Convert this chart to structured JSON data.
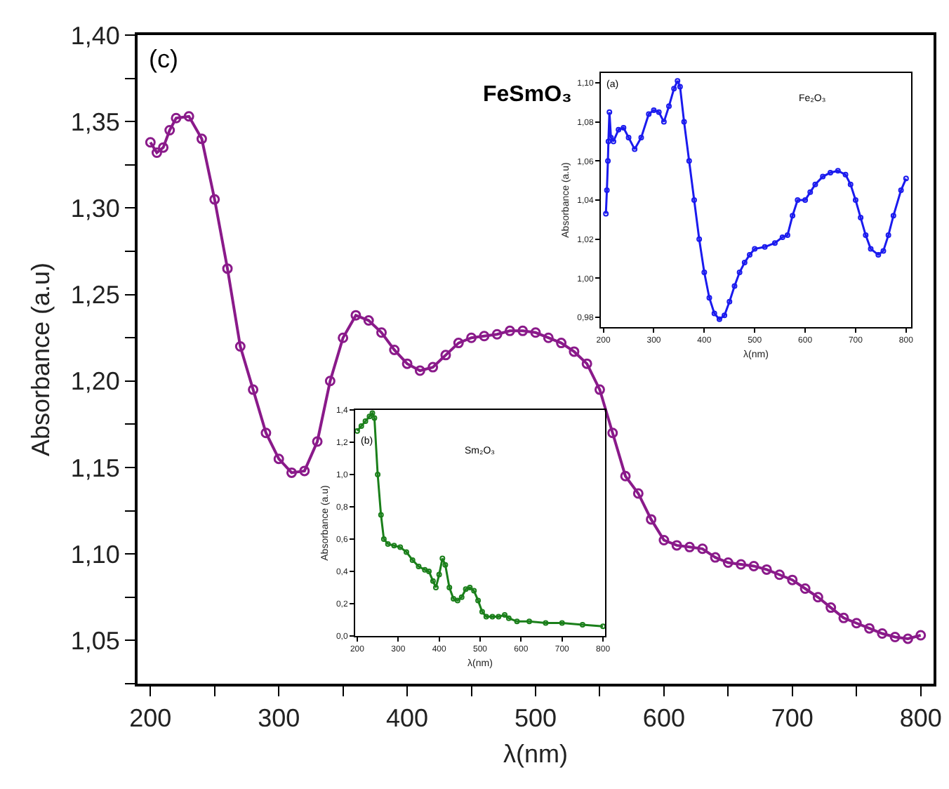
{
  "chart_data": [
    {
      "type": "line",
      "xlabel": "λ(nm)",
      "ylabel": "Absorbance (a.u)",
      "annotations": [
        "(c)",
        "FeSmO₃"
      ],
      "marker": "circle",
      "xlim": [
        190,
        810
      ],
      "ylim": [
        1.025,
        1.4
      ],
      "xticks": [
        200,
        {
          "value": 250,
          "label": null
        },
        300,
        {
          "value": 350,
          "label": null
        },
        400,
        {
          "value": 450,
          "label": null
        },
        500,
        {
          "value": 550,
          "label": null
        },
        600,
        {
          "value": 650,
          "label": null
        },
        700,
        {
          "value": 750,
          "label": null
        },
        800
      ],
      "yticks": [
        {
          "value": 1.025,
          "label": null
        },
        {
          "value": 1.05,
          "label": "1,05"
        },
        {
          "value": 1.075,
          "label": null
        },
        {
          "value": 1.1,
          "label": "1,10"
        },
        {
          "value": 1.125,
          "label": null
        },
        {
          "value": 1.15,
          "label": "1,15"
        },
        {
          "value": 1.175,
          "label": null
        },
        {
          "value": 1.2,
          "label": "1,20"
        },
        {
          "value": 1.225,
          "label": null
        },
        {
          "value": 1.25,
          "label": "1,25"
        },
        {
          "value": 1.275,
          "label": null
        },
        {
          "value": 1.3,
          "label": "1,30"
        },
        {
          "value": 1.325,
          "label": null
        },
        {
          "value": 1.35,
          "label": "1,35"
        },
        {
          "value": 1.375,
          "label": null
        },
        {
          "value": 1.4,
          "label": "1,40"
        }
      ],
      "x": [
        200,
        205,
        210,
        215,
        220,
        230,
        240,
        250,
        260,
        270,
        280,
        290,
        300,
        310,
        320,
        330,
        340,
        350,
        360,
        370,
        380,
        390,
        400,
        410,
        420,
        430,
        440,
        450,
        460,
        470,
        480,
        490,
        500,
        510,
        520,
        530,
        540,
        550,
        560,
        570,
        580,
        590,
        600,
        610,
        620,
        630,
        640,
        650,
        660,
        670,
        680,
        690,
        700,
        710,
        720,
        730,
        740,
        750,
        760,
        770,
        780,
        790,
        800
      ],
      "series": [
        {
          "color": "#8a1a8a",
          "values": [
            1.338,
            1.332,
            1.335,
            1.345,
            1.352,
            1.353,
            1.34,
            1.305,
            1.265,
            1.22,
            1.195,
            1.17,
            1.155,
            1.147,
            1.148,
            1.165,
            1.2,
            1.225,
            1.238,
            1.235,
            1.228,
            1.218,
            1.21,
            1.206,
            1.208,
            1.215,
            1.222,
            1.225,
            1.226,
            1.227,
            1.229,
            1.229,
            1.228,
            1.225,
            1.222,
            1.217,
            1.21,
            1.195,
            1.17,
            1.145,
            1.135,
            1.12,
            1.108,
            1.105,
            1.104,
            1.103,
            1.098,
            1.095,
            1.094,
            1.093,
            1.091,
            1.088,
            1.085,
            1.08,
            1.075,
            1.069,
            1.063,
            1.06,
            1.057,
            1.054,
            1.052,
            1.051,
            1.053
          ]
        }
      ]
    },
    {
      "type": "line",
      "xlabel": "λ(nm)",
      "ylabel": "Absorbance (a.u)",
      "annotations": [
        "(a)",
        "Fe₂O₃"
      ],
      "marker": "circle",
      "xlim": [
        195,
        810
      ],
      "ylim": [
        0.975,
        1.105
      ],
      "xticks": [
        200,
        300,
        400,
        500,
        600,
        700,
        800
      ],
      "yticks": [
        {
          "value": 0.98,
          "label": "0,98"
        },
        {
          "value": 1.0,
          "label": "1,00"
        },
        {
          "value": 1.02,
          "label": "1,02"
        },
        {
          "value": 1.04,
          "label": "1,04"
        },
        {
          "value": 1.06,
          "label": "1,06"
        },
        {
          "value": 1.08,
          "label": "1,08"
        },
        {
          "value": 1.1,
          "label": "1,10"
        }
      ],
      "x": [
        205,
        207,
        209,
        210,
        212,
        215,
        220,
        230,
        240,
        250,
        262,
        275,
        290,
        300,
        310,
        320,
        330,
        340,
        347,
        352,
        360,
        370,
        380,
        390,
        400,
        410,
        420,
        430,
        440,
        450,
        460,
        470,
        480,
        490,
        500,
        520,
        540,
        555,
        565,
        575,
        585,
        600,
        610,
        620,
        635,
        650,
        665,
        680,
        690,
        700,
        710,
        720,
        730,
        745,
        755,
        765,
        775,
        790,
        800
      ],
      "series": [
        {
          "color": "#1a1aee",
          "values": [
            1.033,
            1.045,
            1.06,
            1.07,
            1.085,
            1.072,
            1.07,
            1.076,
            1.077,
            1.072,
            1.066,
            1.072,
            1.084,
            1.086,
            1.085,
            1.08,
            1.088,
            1.097,
            1.101,
            1.098,
            1.08,
            1.06,
            1.04,
            1.02,
            1.003,
            0.99,
            0.982,
            0.979,
            0.981,
            0.988,
            0.996,
            1.003,
            1.008,
            1.012,
            1.015,
            1.016,
            1.018,
            1.021,
            1.022,
            1.032,
            1.04,
            1.04,
            1.044,
            1.048,
            1.052,
            1.054,
            1.055,
            1.053,
            1.048,
            1.04,
            1.031,
            1.022,
            1.015,
            1.012,
            1.014,
            1.022,
            1.032,
            1.045,
            1.051
          ]
        }
      ]
    },
    {
      "type": "line",
      "xlabel": "λ(nm)",
      "ylabel": "Absorbance (a.u)",
      "annotations": [
        "(b)",
        "Sm₂O₃"
      ],
      "marker": "circle",
      "xlim": [
        195,
        805
      ],
      "ylim": [
        0,
        1.4
      ],
      "xticks": [
        200,
        300,
        400,
        500,
        600,
        700,
        800
      ],
      "yticks": [
        {
          "value": 0,
          "label": "0,0"
        },
        {
          "value": 0.2,
          "label": "0,2"
        },
        {
          "value": 0.4,
          "label": "0,4"
        },
        {
          "value": 0.6,
          "label": "0,6"
        },
        {
          "value": 0.8,
          "label": "0,8"
        },
        {
          "value": 1.0,
          "label": "1,0"
        },
        {
          "value": 1.2,
          "label": "1,2"
        },
        {
          "value": 1.4,
          "label": "1,4"
        }
      ],
      "x": [
        200,
        210,
        220,
        230,
        237,
        242,
        250,
        258,
        265,
        275,
        290,
        305,
        320,
        335,
        350,
        365,
        375,
        385,
        392,
        400,
        408,
        415,
        425,
        435,
        445,
        455,
        465,
        475,
        485,
        495,
        505,
        515,
        530,
        545,
        560,
        570,
        590,
        620,
        660,
        700,
        750,
        800
      ],
      "series": [
        {
          "color": "#1a7f1a",
          "values": [
            1.27,
            1.3,
            1.33,
            1.36,
            1.38,
            1.35,
            1.0,
            0.75,
            0.6,
            0.57,
            0.56,
            0.55,
            0.52,
            0.47,
            0.43,
            0.41,
            0.4,
            0.34,
            0.3,
            0.38,
            0.48,
            0.44,
            0.3,
            0.23,
            0.22,
            0.24,
            0.29,
            0.3,
            0.28,
            0.22,
            0.15,
            0.12,
            0.12,
            0.12,
            0.13,
            0.11,
            0.09,
            0.09,
            0.08,
            0.08,
            0.07,
            0.06
          ]
        }
      ]
    }
  ]
}
